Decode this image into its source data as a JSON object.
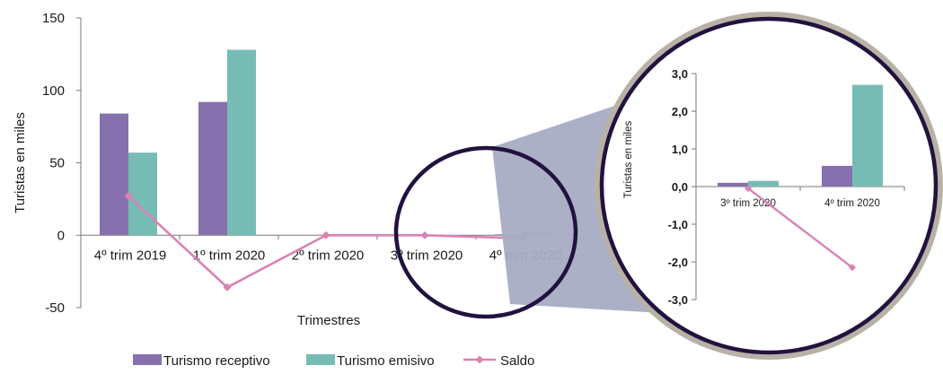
{
  "colors": {
    "receptivo": "#8670AD",
    "emisivo": "#77BBB5",
    "saldo": "#D982B4",
    "axis": "#7a7a7a",
    "lens_border": "#21123F",
    "lens_ring": "#B8B2A6",
    "cone": "#A7ACC3"
  },
  "chart_data": [
    {
      "type": "bar",
      "title": "",
      "xlabel": "Trimestres",
      "ylabel": "Turistas en miles",
      "ylim": [
        -50,
        150
      ],
      "yticks": [
        -50,
        0,
        50,
        100,
        150
      ],
      "ytick_labels": [
        "-50",
        "0",
        "50",
        "100",
        "150"
      ],
      "categories": [
        "4º trim 2019",
        "1º trim 2020",
        "2º trim 2020",
        "3º trim 2020",
        "4º trim 2020"
      ],
      "series": [
        {
          "name": "Turismo receptivo",
          "type": "bar",
          "color_key": "receptivo",
          "values": [
            84,
            92,
            0,
            0.1,
            0.55
          ]
        },
        {
          "name": "Turismo emisivo",
          "type": "bar",
          "color_key": "emisivo",
          "values": [
            57,
            128,
            0,
            0.15,
            2.7
          ]
        },
        {
          "name": "Saldo",
          "type": "line",
          "color_key": "saldo",
          "values": [
            27,
            -36,
            0,
            -0.05,
            -2.15
          ]
        }
      ],
      "legend": "bottom"
    },
    {
      "type": "bar",
      "title": "",
      "ylabel": "Turistas en miles",
      "ylim": [
        -3,
        3
      ],
      "yticks": [
        -3,
        -2,
        -1,
        0,
        1,
        2,
        3
      ],
      "ytick_labels": [
        "-3,0",
        "-2,0",
        "-1,0",
        "0,0",
        "1,0",
        "2,0",
        "3,0"
      ],
      "categories": [
        "3º trim 2020",
        "4º trim 2020"
      ],
      "series": [
        {
          "name": "Turismo receptivo",
          "type": "bar",
          "color_key": "receptivo",
          "values": [
            0.1,
            0.55
          ]
        },
        {
          "name": "Turismo emisivo",
          "type": "bar",
          "color_key": "emisivo",
          "values": [
            0.15,
            2.7
          ]
        },
        {
          "name": "Saldo",
          "type": "line",
          "color_key": "saldo",
          "values": [
            -0.05,
            -2.15
          ]
        }
      ]
    }
  ]
}
